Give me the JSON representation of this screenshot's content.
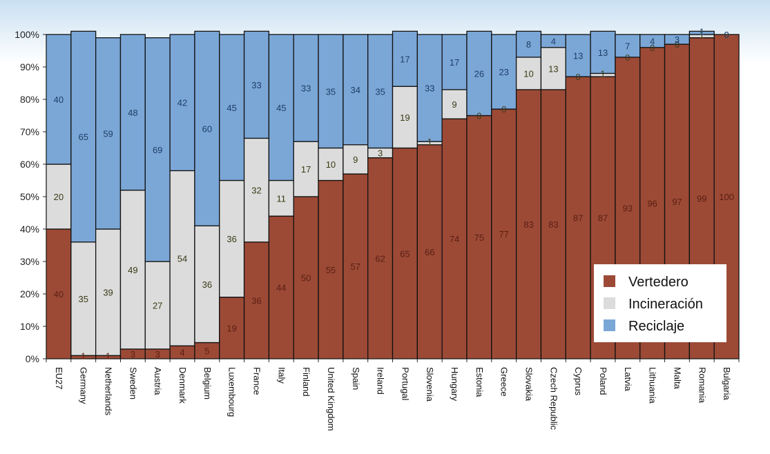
{
  "chart_data": {
    "type": "bar",
    "stacked": true,
    "ylim": [
      0,
      100
    ],
    "yticks": [
      "0%",
      "10%",
      "20%",
      "30%",
      "40%",
      "50%",
      "60%",
      "70%",
      "80%",
      "90%",
      "100%"
    ],
    "categories": [
      "EU27",
      "Germany",
      "Netherlands",
      "Sweden",
      "Austria",
      "Denmark",
      "Belgium",
      "Luxembourg",
      "France",
      "Italy",
      "Finland",
      "United Kingdom",
      "Spain",
      "Ireland",
      "Portugal",
      "Slovenia",
      "Hungary",
      "Estonia",
      "Greece",
      "Slovakia",
      "Czech Republic",
      "Cyprus",
      "Poland",
      "Latvia",
      "Lithuania",
      "Malta",
      "Romania",
      "Bulgaria"
    ],
    "series": [
      {
        "name": "Vertedero",
        "color": "#9c4a36",
        "values": [
          40,
          1,
          1,
          3,
          3,
          4,
          5,
          19,
          36,
          44,
          50,
          55,
          57,
          62,
          65,
          66,
          74,
          75,
          77,
          83,
          83,
          87,
          87,
          93,
          96,
          97,
          99,
          100
        ]
      },
      {
        "name": "Incineración",
        "color": "#dcdcdc",
        "values": [
          20,
          35,
          39,
          49,
          27,
          54,
          36,
          36,
          32,
          11,
          17,
          10,
          9,
          3,
          19,
          1,
          9,
          0,
          0,
          10,
          13,
          0,
          1,
          0,
          0,
          0,
          1,
          0
        ]
      },
      {
        "name": "Reciclaje",
        "color": "#7ba7d7",
        "values": [
          40,
          65,
          59,
          48,
          69,
          42,
          60,
          45,
          33,
          45,
          33,
          35,
          34,
          35,
          17,
          33,
          17,
          26,
          23,
          8,
          4,
          13,
          13,
          7,
          4,
          3,
          1,
          0
        ]
      }
    ],
    "legend_position": "bottom-right",
    "grid": false
  }
}
